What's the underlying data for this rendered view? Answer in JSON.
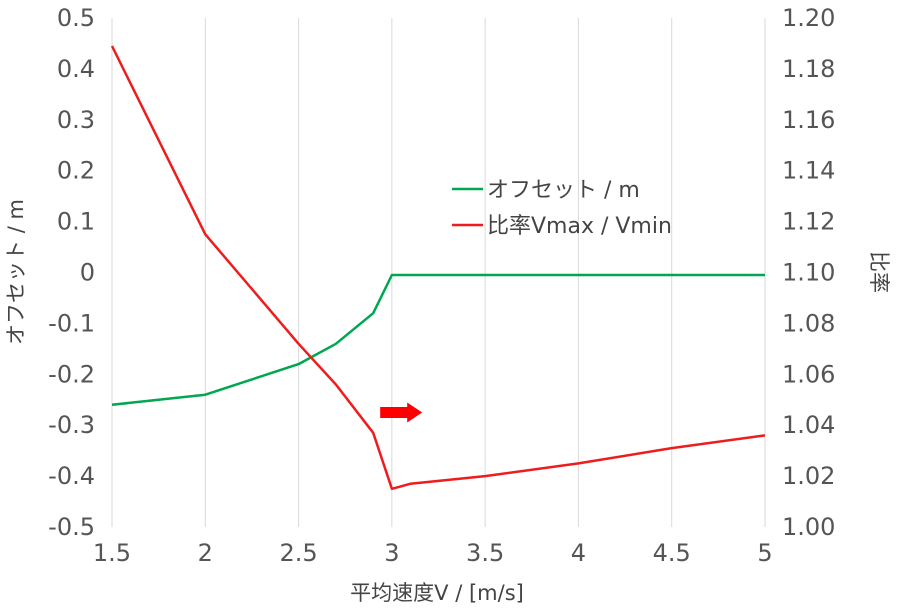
{
  "chart_data": {
    "type": "line",
    "xlabel": "平均速度V / [m/s]",
    "ylabel": "オフセット / m",
    "y2label": "比率",
    "xlim": [
      1.5,
      5
    ],
    "ylim": [
      -0.5,
      0.5
    ],
    "y2lim": [
      1.0,
      1.2
    ],
    "x_ticks": [
      "1.5",
      "2",
      "2.5",
      "3",
      "3.5",
      "4",
      "4.5",
      "5"
    ],
    "y_ticks": [
      "0.5",
      "0.4",
      "0.3",
      "0.2",
      "0.1",
      "0",
      "-0.1",
      "-0.2",
      "-0.3",
      "-0.4",
      "-0.5"
    ],
    "y2_ticks": [
      "1.20",
      "1.18",
      "1.16",
      "1.14",
      "1.12",
      "1.10",
      "1.08",
      "1.06",
      "1.04",
      "1.02",
      "1.00"
    ],
    "grid": "vertical",
    "legend_position": "upper-right-center",
    "series": [
      {
        "name": "オフセット / m",
        "axis": "left",
        "color": "#00a650",
        "points": [
          [
            1.5,
            -0.26
          ],
          [
            2.0,
            -0.24
          ],
          [
            2.5,
            -0.18
          ],
          [
            2.7,
            -0.14
          ],
          [
            2.9,
            -0.08
          ],
          [
            3.0,
            -0.005
          ],
          [
            3.1,
            -0.005
          ],
          [
            3.5,
            -0.005
          ],
          [
            4.0,
            -0.005
          ],
          [
            4.5,
            -0.005
          ],
          [
            5.0,
            -0.005
          ]
        ]
      },
      {
        "name": "比率Vmax / Vmin",
        "axis": "right",
        "color": "#ee1c1c",
        "points": [
          [
            1.5,
            1.189
          ],
          [
            2.0,
            1.115
          ],
          [
            2.5,
            1.072
          ],
          [
            2.7,
            1.056
          ],
          [
            2.9,
            1.037
          ],
          [
            3.0,
            1.015
          ],
          [
            3.05,
            1.016
          ],
          [
            3.1,
            1.017
          ],
          [
            3.5,
            1.02
          ],
          [
            4.0,
            1.025
          ],
          [
            4.5,
            1.031
          ],
          [
            5.0,
            1.036
          ]
        ]
      }
    ],
    "annotation": {
      "type": "arrow",
      "direction": "right",
      "color": "#ff0000",
      "x": 3.05,
      "y": -0.275
    }
  }
}
